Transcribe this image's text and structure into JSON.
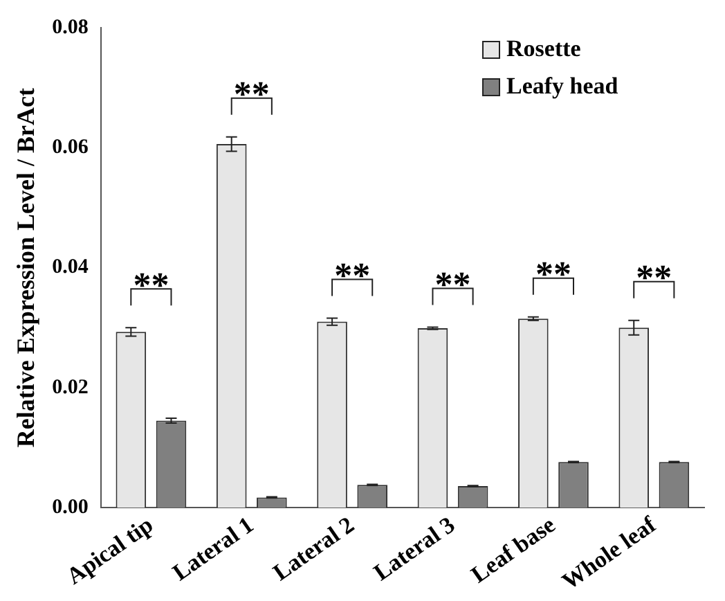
{
  "chart_data": {
    "type": "bar",
    "ylabel": "Relative Expression Level / BrAct",
    "categories": [
      "Apical tip",
      "Lateral 1",
      "Lateral 2",
      "Lateral 3",
      "Leaf base",
      "Whole leaf"
    ],
    "series": [
      {
        "name": "Rosette",
        "color": "#e6e6e6",
        "values": [
          0.0293,
          0.0606,
          0.031,
          0.0299,
          0.0315,
          0.03
        ],
        "errors": [
          0.0007,
          0.0012,
          0.0006,
          0.0002,
          0.0003,
          0.0012
        ]
      },
      {
        "name": "Leafy head",
        "color": "#808080",
        "values": [
          0.0145,
          0.0017,
          0.0038,
          0.0036,
          0.0076,
          0.0076
        ],
        "errors": [
          0.0004,
          0.0001,
          0.0001,
          0.0001,
          0.0001,
          0.0001
        ]
      }
    ],
    "annotations": [
      "**",
      "**",
      "**",
      "**",
      "**",
      "**"
    ],
    "ylim": [
      0,
      0.08
    ],
    "yticks": [
      {
        "value": 0,
        "label": "0.00"
      },
      {
        "value": 0.02,
        "label": "0.02"
      },
      {
        "value": 0.04,
        "label": "0.04"
      },
      {
        "value": 0.06,
        "label": "0.06"
      },
      {
        "value": 0.08,
        "label": "0.08"
      }
    ],
    "grid": false,
    "legend": "top right"
  }
}
